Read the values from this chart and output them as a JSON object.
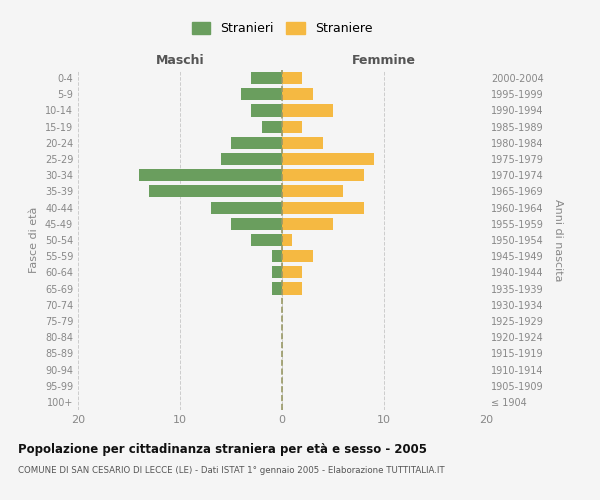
{
  "age_groups": [
    "100+",
    "95-99",
    "90-94",
    "85-89",
    "80-84",
    "75-79",
    "70-74",
    "65-69",
    "60-64",
    "55-59",
    "50-54",
    "45-49",
    "40-44",
    "35-39",
    "30-34",
    "25-29",
    "20-24",
    "15-19",
    "10-14",
    "5-9",
    "0-4"
  ],
  "birth_years": [
    "≤ 1904",
    "1905-1909",
    "1910-1914",
    "1915-1919",
    "1920-1924",
    "1925-1929",
    "1930-1934",
    "1935-1939",
    "1940-1944",
    "1945-1949",
    "1950-1954",
    "1955-1959",
    "1960-1964",
    "1965-1969",
    "1970-1974",
    "1975-1979",
    "1980-1984",
    "1985-1989",
    "1990-1994",
    "1995-1999",
    "2000-2004"
  ],
  "maschi": [
    0,
    0,
    0,
    0,
    0,
    0,
    0,
    1,
    1,
    1,
    3,
    5,
    7,
    13,
    14,
    6,
    5,
    2,
    3,
    4,
    3
  ],
  "femmine": [
    0,
    0,
    0,
    0,
    0,
    0,
    0,
    2,
    2,
    3,
    1,
    5,
    8,
    6,
    8,
    9,
    4,
    2,
    5,
    3,
    2
  ],
  "male_color": "#6a9e5e",
  "female_color": "#f5b942",
  "background_color": "#f5f5f5",
  "grid_color": "#cccccc",
  "title": "Popolazione per cittadinanza straniera per età e sesso - 2005",
  "subtitle": "COMUNE DI SAN CESARIO DI LECCE (LE) - Dati ISTAT 1° gennaio 2005 - Elaborazione TUTTITALIA.IT",
  "xlabel_left": "Maschi",
  "xlabel_right": "Femmine",
  "ylabel_left": "Fasce di età",
  "ylabel_right": "Anni di nascita",
  "legend_male": "Stranieri",
  "legend_female": "Straniere",
  "xlim": 20,
  "dpi": 100,
  "figwidth": 6.0,
  "figheight": 5.0
}
